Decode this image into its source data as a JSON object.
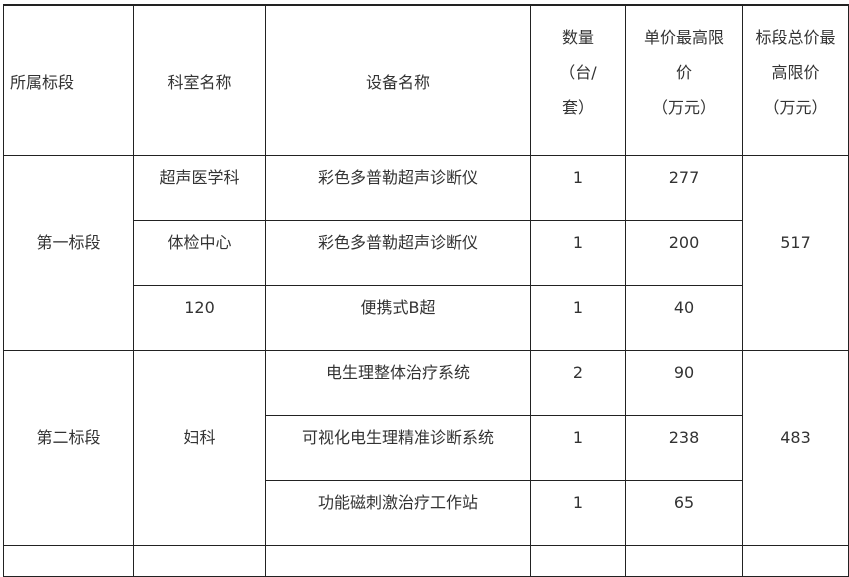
{
  "headers": {
    "section": "所属标段",
    "department": "科室名称",
    "equipment": "设备名称",
    "quantity": [
      "数量",
      "（台/",
      "套）"
    ],
    "unit_price": [
      "单价最高限",
      "价",
      "（万元）"
    ],
    "section_total": [
      "标段总价最",
      "高限价",
      "（万元）"
    ]
  },
  "sections": [
    {
      "name": "第一标段",
      "total": "517",
      "rows": [
        {
          "department": "超声医学科",
          "equipment": "彩色多普勒超声诊断仪",
          "quantity": "1",
          "unit_price": "277"
        },
        {
          "department": "体检中心",
          "equipment": "彩色多普勒超声诊断仪",
          "quantity": "1",
          "unit_price": "200"
        },
        {
          "department": "120",
          "equipment": "便携式B超",
          "quantity": "1",
          "unit_price": "40"
        }
      ]
    },
    {
      "name": "第二标段",
      "total": "483",
      "department": "妇科",
      "rows": [
        {
          "equipment": "电生理整体治疗系统",
          "quantity": "2",
          "unit_price": "90"
        },
        {
          "equipment": "可视化电生理精准诊断系统",
          "quantity": "1",
          "unit_price": "238"
        },
        {
          "equipment": "功能磁刺激治疗工作站",
          "quantity": "1",
          "unit_price": "65"
        }
      ]
    }
  ]
}
